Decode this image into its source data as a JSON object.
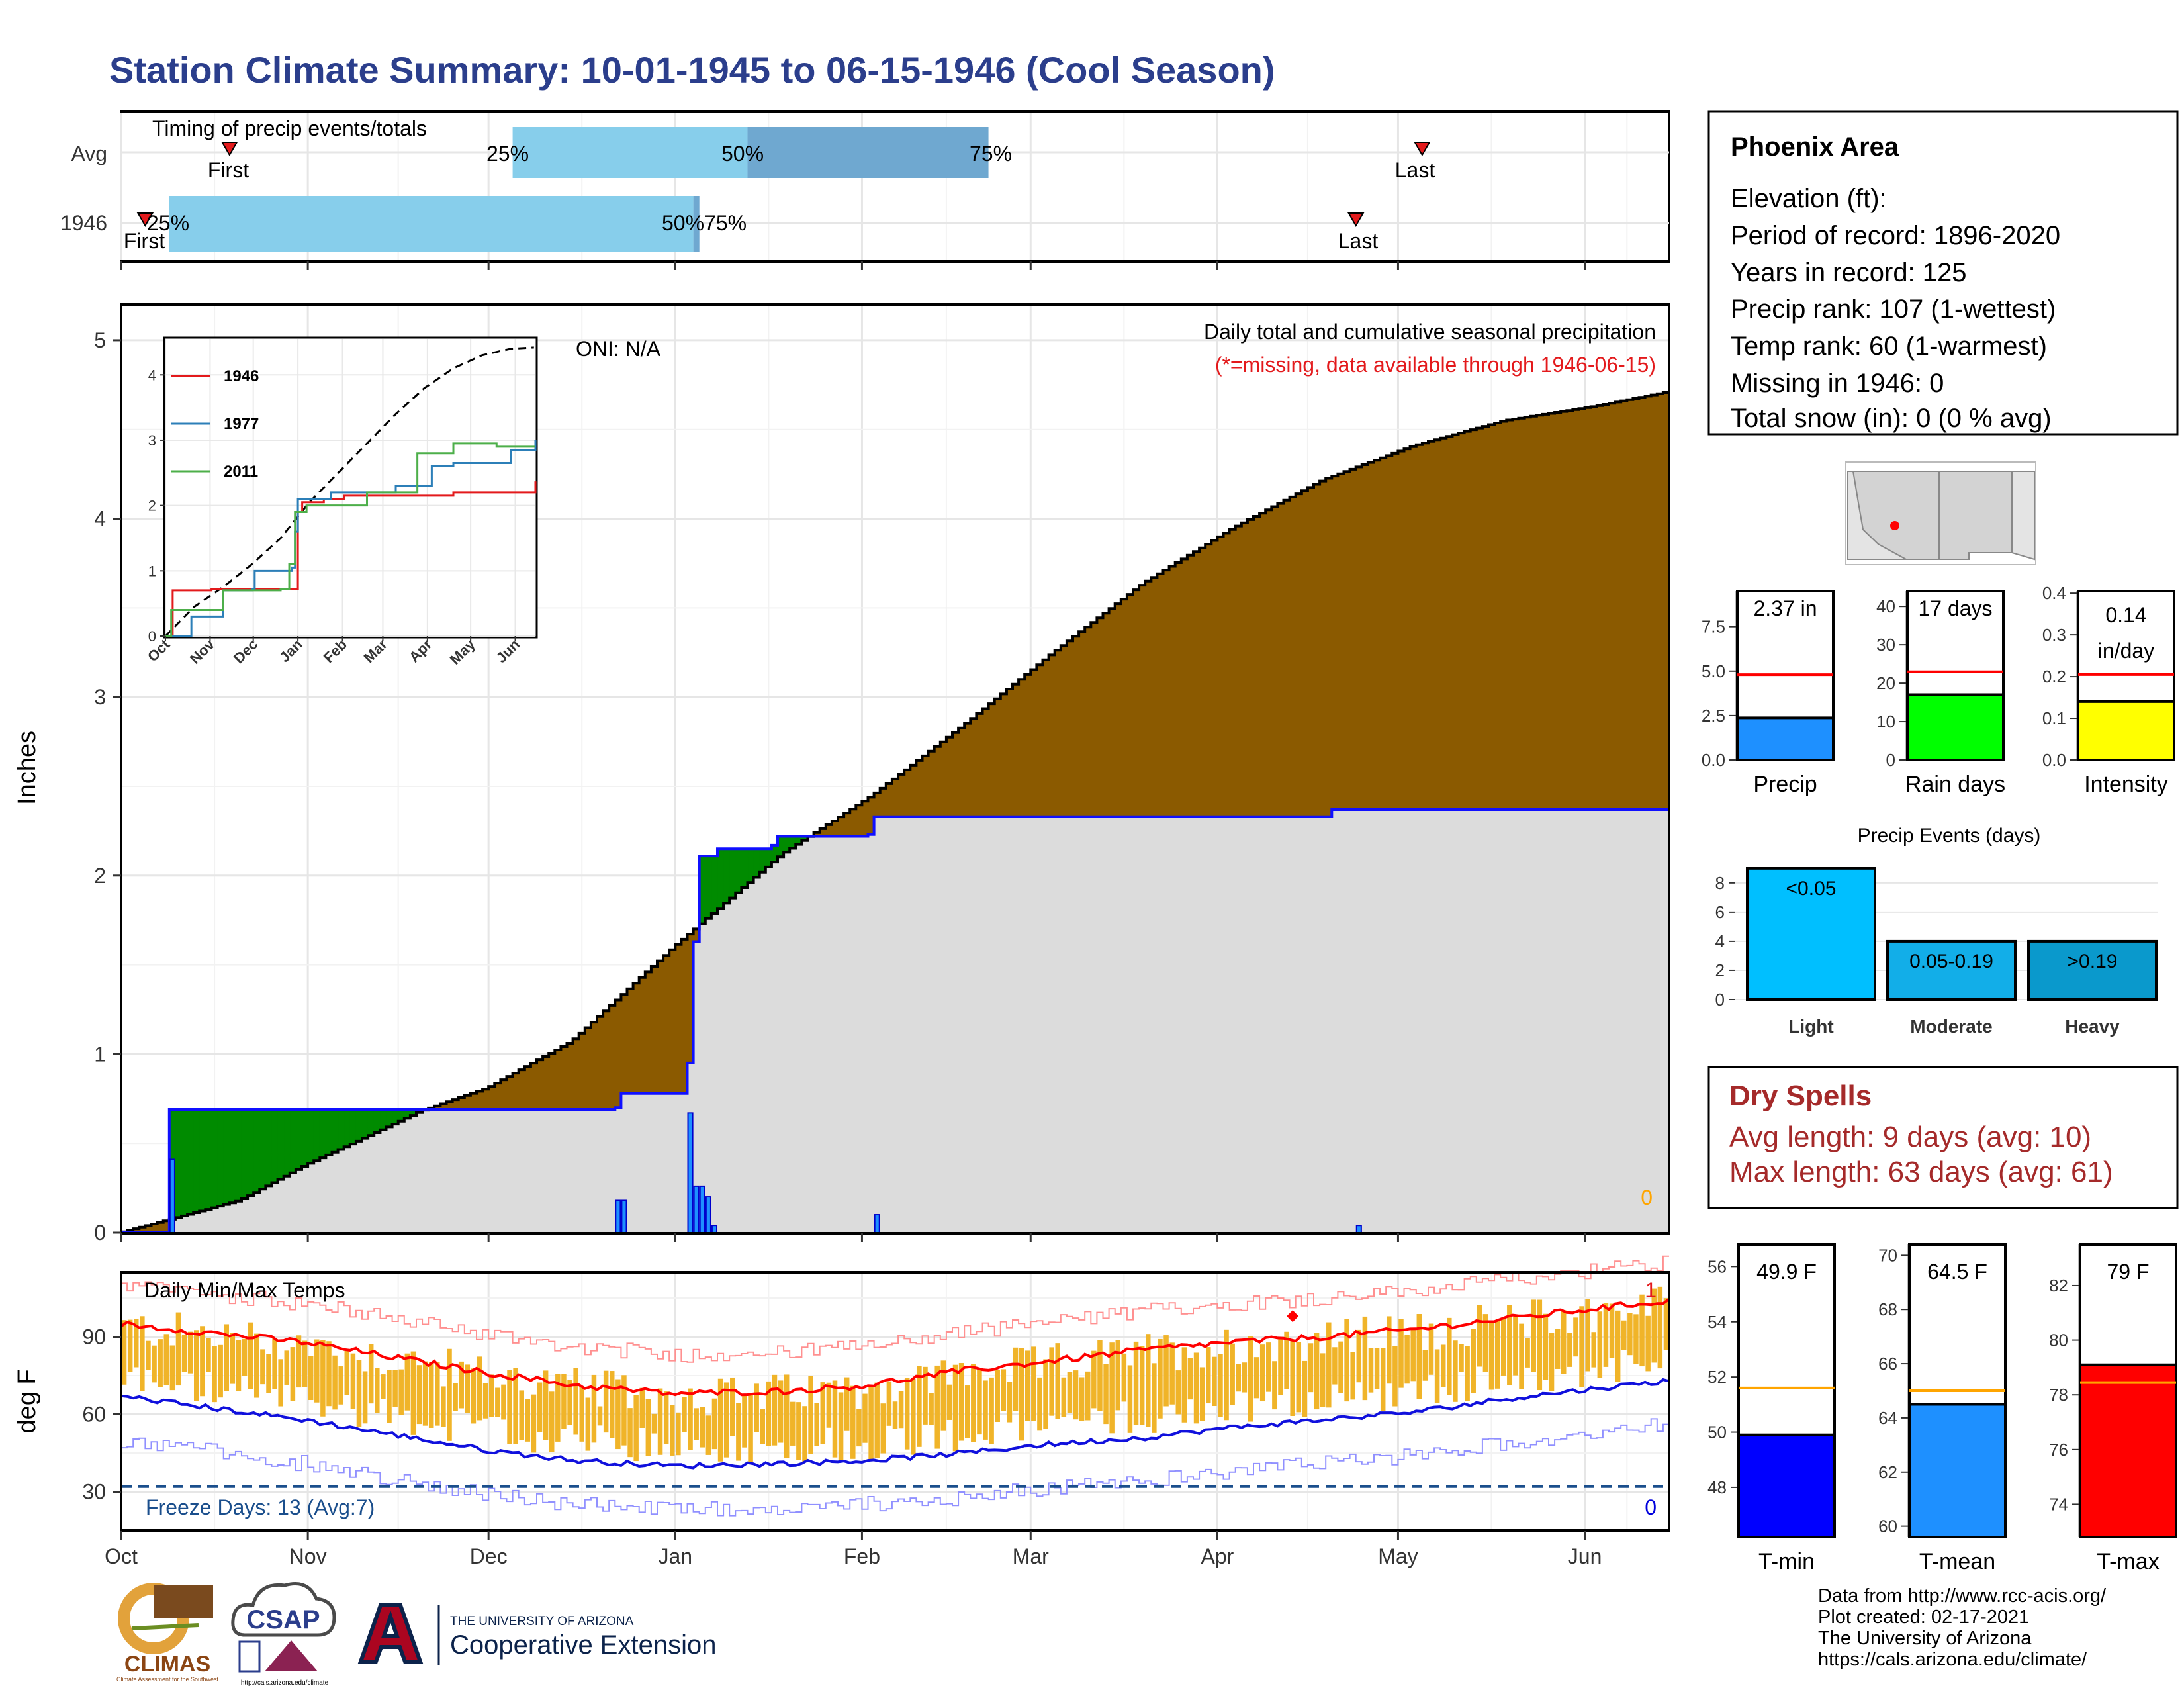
{
  "title": "Station Climate Summary: 10-01-1945 to 06-15-1946 (Cool Season)",
  "colors": {
    "title": "#2B3E8C",
    "q_light": "#87CEEB",
    "q_dark": "#6FA8D0",
    "marker": "#E31A1C",
    "cum_avg_fill": "#8B5A00",
    "cum_year_fill": "#DCDCDC",
    "cum_year_line": "#1010FF",
    "cum_deficit_fill": "#008B00",
    "missing_text": "#E31A1C",
    "temp_bar": "#F0B429",
    "tmax_line": "#FF0000",
    "tmin_line": "#1010DD",
    "precip_bar": "#1E90FF",
    "raindays_bar": "#00FF00",
    "intensity_bar": "#FFFF00",
    "events_light": "#00BFFF",
    "events_moderate": "#12AEE8",
    "events_heavy": "#0A99CC",
    "tmin_bar": "#0000FF",
    "tmean_bar": "#1E90FF",
    "tmax_bar": "#FF0000",
    "dry_spell_text": "#A52A2A",
    "freeze_text": "#1A4E8C"
  },
  "timing": {
    "label": "Timing of precip events/totals",
    "rows": [
      "Avg",
      "1946"
    ],
    "first_label": "First",
    "last_label": "Last",
    "pct_labels": [
      "25%",
      "50%",
      "75%"
    ],
    "overlap_label_1946": "50%75%",
    "chart_data": {
      "type": "bar",
      "x_domain_days": [
        0,
        257
      ],
      "avg": {
        "first": 18,
        "q25": 65,
        "q50": 104,
        "q75": 144,
        "last": 216
      },
      "year": {
        "first": 4,
        "q25": 8,
        "q50": 95,
        "q75": 96,
        "last": 205
      }
    }
  },
  "main_chart": {
    "ylabel": "Inches",
    "oni_label": "ONI: N/A",
    "subtitle": "Daily total and cumulative seasonal precipitation",
    "missing_note": "(*=missing, data available through 1946-06-15)",
    "missing_count": "0",
    "chart_data": {
      "type": "area",
      "ylim": [
        0,
        5
      ],
      "yticks": [
        "0",
        "1",
        "2",
        "3",
        "4",
        "5"
      ],
      "months": [
        "Oct",
        "Nov",
        "Dec",
        "Jan",
        "Feb",
        "Mar",
        "Apr",
        "May",
        "Jun"
      ],
      "cum_avg_knots": [
        [
          0,
          0
        ],
        [
          8,
          0.07
        ],
        [
          20,
          0.18
        ],
        [
          31,
          0.38
        ],
        [
          40,
          0.52
        ],
        [
          50,
          0.68
        ],
        [
          61,
          0.81
        ],
        [
          75,
          1.07
        ],
        [
          92,
          1.6
        ],
        [
          110,
          2.12
        ],
        [
          125,
          2.45
        ],
        [
          140,
          2.84
        ],
        [
          155,
          3.25
        ],
        [
          170,
          3.64
        ],
        [
          185,
          3.95
        ],
        [
          200,
          4.22
        ],
        [
          215,
          4.41
        ],
        [
          230,
          4.55
        ],
        [
          245,
          4.63
        ],
        [
          257,
          4.71
        ]
      ],
      "cum_year_knots": [
        [
          0,
          0
        ],
        [
          4,
          0
        ],
        [
          8,
          0.69
        ],
        [
          82,
          0.7
        ],
        [
          83,
          0.78
        ],
        [
          93,
          0.78
        ],
        [
          94,
          0.95
        ],
        [
          95,
          1.63
        ],
        [
          96,
          2.11
        ],
        [
          97,
          2.11
        ],
        [
          99,
          2.15
        ],
        [
          108,
          2.17
        ],
        [
          109,
          2.22
        ],
        [
          124,
          2.23
        ],
        [
          125,
          2.33
        ],
        [
          200,
          2.33
        ],
        [
          201,
          2.37
        ],
        [
          257,
          2.37
        ]
      ],
      "daily_bars": [
        [
          8,
          0.41
        ],
        [
          82,
          0.18
        ],
        [
          83,
          0.18
        ],
        [
          94,
          0.67
        ],
        [
          95,
          0.26
        ],
        [
          96,
          0.26
        ],
        [
          97,
          0.2
        ],
        [
          98,
          0.04
        ],
        [
          125,
          0.1
        ],
        [
          205,
          0.04
        ]
      ]
    }
  },
  "inset": {
    "chart_data": {
      "type": "line",
      "ylim": [
        0,
        4.5
      ],
      "yticks": [
        "0",
        "1",
        "2",
        "3",
        "4"
      ],
      "months": [
        "Oct",
        "Nov",
        "Dec",
        "Jan",
        "Feb",
        "Mar",
        "Apr",
        "May",
        "Jun"
      ],
      "series": [
        {
          "name": "1946",
          "color": "#E31A1C",
          "knots": [
            [
              0,
              0
            ],
            [
              5,
              0.7
            ],
            [
              30,
              0.7
            ],
            [
              32,
              0.72
            ],
            [
              90,
              0.72
            ],
            [
              92,
              1.9
            ],
            [
              95,
              2.05
            ],
            [
              110,
              2.1
            ],
            [
              124,
              2.15
            ],
            [
              200,
              2.2
            ],
            [
              257,
              2.37
            ]
          ]
        },
        {
          "name": "1977",
          "color": "#2C7FB8",
          "knots": [
            [
              0,
              0
            ],
            [
              16,
              0
            ],
            [
              18,
              0.3
            ],
            [
              40,
              0.7
            ],
            [
              60,
              0.72
            ],
            [
              62,
              1.0
            ],
            [
              88,
              1.05
            ],
            [
              90,
              1.6
            ],
            [
              92,
              2.1
            ],
            [
              115,
              2.2
            ],
            [
              160,
              2.3
            ],
            [
              185,
              2.6
            ],
            [
              200,
              2.65
            ],
            [
              240,
              2.85
            ],
            [
              257,
              3.0
            ]
          ]
        },
        {
          "name": "2011",
          "color": "#4DAF4A",
          "knots": [
            [
              0,
              0
            ],
            [
              4,
              0.4
            ],
            [
              40,
              0.7
            ],
            [
              80,
              0.72
            ],
            [
              86,
              1.1
            ],
            [
              90,
              1.9
            ],
            [
              98,
              2.0
            ],
            [
              130,
              2.0
            ],
            [
              140,
              2.2
            ],
            [
              170,
              2.2
            ],
            [
              175,
              2.8
            ],
            [
              200,
              2.95
            ],
            [
              230,
              2.9
            ],
            [
              257,
              2.9
            ]
          ]
        }
      ],
      "avg_knots": [
        [
          0,
          0
        ],
        [
          20,
          0.45
        ],
        [
          40,
          0.75
        ],
        [
          60,
          1.1
        ],
        [
          80,
          1.5
        ],
        [
          100,
          2.05
        ],
        [
          120,
          2.5
        ],
        [
          140,
          2.95
        ],
        [
          160,
          3.4
        ],
        [
          180,
          3.8
        ],
        [
          200,
          4.1
        ],
        [
          220,
          4.3
        ],
        [
          240,
          4.4
        ],
        [
          257,
          4.42
        ]
      ]
    }
  },
  "temps": {
    "label": "Daily Min/Max Temps",
    "ylabel": "deg F",
    "freeze_label": "Freeze Days: 13 (Avg:7)",
    "record_high_count": "1",
    "record_low_count": "0",
    "chart_data": {
      "type": "bar",
      "ylim": [
        15,
        115
      ],
      "yticks": [
        "30",
        "60",
        "90"
      ],
      "months": [
        "Oct",
        "Nov",
        "Dec",
        "Jan",
        "Feb",
        "Mar",
        "Apr",
        "May",
        "Jun"
      ],
      "freeze_line": 32,
      "record_high_day": 194,
      "record_high_value": 98,
      "avg_max_knots": [
        [
          0,
          95
        ],
        [
          30,
          88
        ],
        [
          61,
          76
        ],
        [
          76,
          71
        ],
        [
          92,
          68
        ],
        [
          110,
          69
        ],
        [
          123,
          71
        ],
        [
          140,
          77
        ],
        [
          152,
          80
        ],
        [
          170,
          85
        ],
        [
          185,
          88
        ],
        [
          200,
          90
        ],
        [
          215,
          93
        ],
        [
          230,
          97
        ],
        [
          245,
          101
        ],
        [
          257,
          104
        ]
      ],
      "avg_min_knots": [
        [
          0,
          67
        ],
        [
          30,
          58
        ],
        [
          61,
          46
        ],
        [
          76,
          42
        ],
        [
          92,
          40
        ],
        [
          110,
          41
        ],
        [
          123,
          42
        ],
        [
          140,
          45
        ],
        [
          152,
          48
        ],
        [
          170,
          51
        ],
        [
          185,
          55
        ],
        [
          200,
          58
        ],
        [
          215,
          61
        ],
        [
          230,
          66
        ],
        [
          245,
          70
        ],
        [
          257,
          73
        ]
      ]
    }
  },
  "station": {
    "name": "Phoenix Area",
    "lines": [
      "Elevation (ft):",
      "Period of record: 1896-2020",
      "Years in record: 125",
      "Precip rank: 107 (1-wettest)",
      "Temp rank: 60 (1-warmest)",
      "Missing in 1946: 0",
      "Total snow (in): 0 (0 % avg)"
    ]
  },
  "mini_bars": [
    {
      "label": "Precip",
      "value_label": "2.37 in",
      "value": 2.37,
      "avg": 4.8,
      "ymax": 9.5,
      "ticks": [
        [
          "0.0",
          0
        ],
        [
          "2.5",
          2.5
        ],
        [
          "5.0",
          5
        ],
        [
          "7.5",
          7.5
        ]
      ],
      "color": "#1E90FF"
    },
    {
      "label": "Rain days",
      "value_label": "17 days",
      "value": 17,
      "avg": 23,
      "ymax": 44,
      "ticks": [
        [
          "0",
          0
        ],
        [
          "10",
          10
        ],
        [
          "20",
          20
        ],
        [
          "30",
          30
        ],
        [
          "40",
          40
        ]
      ],
      "color": "#00FF00"
    },
    {
      "label": "Intensity",
      "value_label": "0.14",
      "value_label_2": "in/day",
      "value": 0.14,
      "avg": 0.205,
      "ymax": 0.405,
      "ticks": [
        [
          "0.0",
          0
        ],
        [
          "0.1",
          0.1
        ],
        [
          "0.2",
          0.2
        ],
        [
          "0.3",
          0.3
        ],
        [
          "0.4",
          0.4
        ]
      ],
      "color": "#FFFF00"
    }
  ],
  "events": {
    "title": "Precip Events (days)",
    "chart_data": {
      "type": "bar",
      "categories": [
        "Light",
        "Moderate",
        "Heavy"
      ],
      "bar_labels": [
        "<0.05",
        "0.05-0.19",
        ">0.19"
      ],
      "values": [
        9,
        4,
        4
      ],
      "ylim": [
        0,
        9.4
      ],
      "yticks": [
        "0",
        "2",
        "4",
        "6",
        "8"
      ],
      "colors": [
        "#00BFFF",
        "#12AEE8",
        "#0A99CC"
      ]
    }
  },
  "dry_spells": {
    "title": "Dry Spells",
    "avg_line": "Avg length: 9 days (avg: 10)",
    "max_line": "Max length: 63 days (avg: 61)"
  },
  "temp_bars": [
    {
      "label": "T-min",
      "value_label": "49.9 F",
      "value": 49.9,
      "avg": 51.6,
      "ymin": 46.2,
      "ymax": 56.8,
      "ticks": [
        [
          "48",
          48
        ],
        [
          "50",
          50
        ],
        [
          "52",
          52
        ],
        [
          "54",
          54
        ],
        [
          "56",
          56
        ]
      ],
      "color": "#0000FF"
    },
    {
      "label": "T-mean",
      "value_label": "64.5 F",
      "value": 64.5,
      "avg": 65.0,
      "ymin": 59.6,
      "ymax": 70.4,
      "ticks": [
        [
          "60",
          60
        ],
        [
          "62",
          62
        ],
        [
          "64",
          64
        ],
        [
          "66",
          66
        ],
        [
          "68",
          68
        ],
        [
          "70",
          70
        ]
      ],
      "color": "#1E90FF"
    },
    {
      "label": "T-max",
      "value_label": "79 F",
      "value": 79.1,
      "avg": 78.45,
      "ymin": 72.8,
      "ymax": 83.5,
      "ticks": [
        [
          "74",
          74
        ],
        [
          "76",
          76
        ],
        [
          "78",
          78
        ],
        [
          "80",
          80
        ],
        [
          "82",
          82
        ]
      ],
      "color": "#FF0000"
    }
  ],
  "footer": {
    "lines": [
      "Data from http://www.rcc-acis.org/",
      "Plot created: 02-17-2021",
      "The University of Arizona",
      "https://cals.arizona.edu/climate/"
    ],
    "climas": "CLIMAS",
    "climas_sub": "Climate Assessment for the Southwest",
    "csap": "CSAP",
    "csap_url": "http://cals.arizona.edu/climate",
    "ua_small": "THE UNIVERSITY OF ARIZONA",
    "ua_big": "Cooperative Extension"
  }
}
